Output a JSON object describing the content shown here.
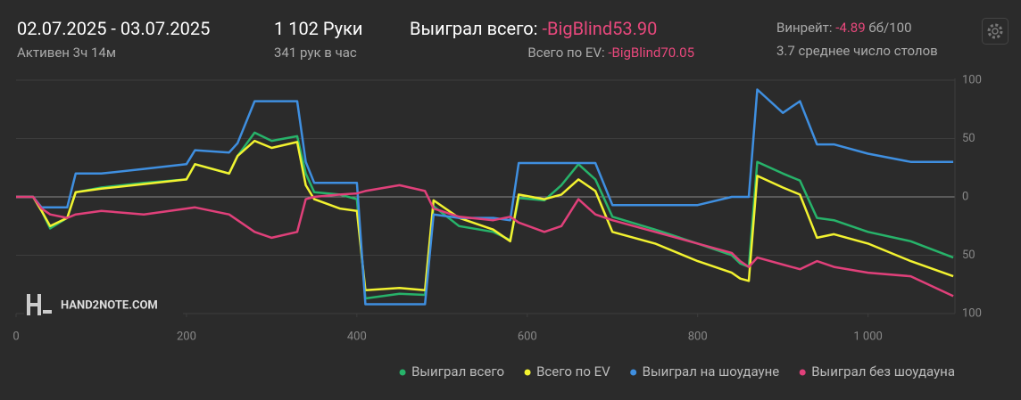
{
  "header": {
    "date_range": "02.07.2025 - 03.07.2025",
    "active": "Активен 3ч 14м",
    "hands": "1 102 Руки",
    "hands_per_hour": "341 рук в час",
    "won_label": "Выиграл всего:",
    "won_value": "-BigBlind53.90",
    "ev_label": "Всего по EV:",
    "ev_value": "-BigBlind70.05",
    "winrate_label": "Винрейт:",
    "winrate_value": "-4.89",
    "winrate_unit": "бб/100",
    "tables": "3.7 среднее число столов",
    "watermark": "HAND2NOTE.COM"
  },
  "chart_data": {
    "type": "line",
    "grid": true,
    "legend": "bottom-right",
    "x": [
      0,
      20,
      30,
      40,
      60,
      70,
      100,
      150,
      200,
      210,
      250,
      260,
      280,
      300,
      330,
      340,
      350,
      380,
      400,
      410,
      450,
      480,
      490,
      520,
      560,
      580,
      590,
      620,
      640,
      660,
      680,
      700,
      750,
      800,
      840,
      850,
      860,
      870,
      900,
      920,
      940,
      960,
      1000,
      1050,
      1100
    ],
    "xlim": [
      0,
      1102
    ],
    "xticks": [
      0,
      200,
      400,
      600,
      800,
      {
        "value": 1000,
        "label": "1 000"
      }
    ],
    "ylim": [
      -100,
      100
    ],
    "yticks": [
      {
        "value": -100,
        "label": "100"
      },
      {
        "value": -50,
        "label": "50"
      },
      0,
      50,
      100
    ],
    "series": [
      {
        "name": "Выиграл всего",
        "color": "#27b36a",
        "values": [
          0,
          0,
          -12,
          -27,
          -18,
          4,
          8,
          12,
          15,
          28,
          20,
          35,
          55,
          48,
          52,
          20,
          4,
          2,
          -2,
          -87,
          -83,
          -84,
          -8,
          -25,
          -30,
          -37,
          -1,
          -3,
          10,
          28,
          15,
          -17,
          -28,
          -40,
          -50,
          -57,
          -60,
          30,
          20,
          14,
          -18,
          -20,
          -30,
          -38,
          -52
        ]
      },
      {
        "name": "Всего по EV",
        "color": "#f2f230",
        "values": [
          0,
          0,
          -12,
          -25,
          -18,
          4,
          7,
          11,
          15,
          28,
          20,
          35,
          48,
          42,
          47,
          10,
          -2,
          -10,
          -12,
          -80,
          -78,
          -80,
          -3,
          -18,
          -28,
          -38,
          2,
          -2,
          2,
          15,
          5,
          -30,
          -40,
          -55,
          -65,
          -70,
          -72,
          18,
          8,
          2,
          -35,
          -32,
          -40,
          -55,
          -68
        ]
      },
      {
        "name": "Выиграл на шоудауне",
        "color": "#3f8fe0",
        "values": [
          0,
          0,
          -9,
          -9,
          -9,
          20,
          20,
          24,
          28,
          40,
          38,
          46,
          82,
          82,
          82,
          30,
          12,
          12,
          12,
          -92,
          -92,
          -92,
          -15,
          -18,
          -18,
          -20,
          29,
          29,
          29,
          29,
          29,
          -7,
          -7,
          -7,
          0,
          0,
          0,
          92,
          72,
          82,
          45,
          45,
          37,
          30,
          30
        ]
      },
      {
        "name": "Выиграл без шоудауна",
        "color": "#e0407a",
        "values": [
          0,
          0,
          -10,
          -15,
          -18,
          -15,
          -12,
          -15,
          -10,
          -9,
          -15,
          -20,
          -30,
          -35,
          -30,
          -2,
          0,
          2,
          3,
          5,
          10,
          5,
          -10,
          -17,
          -20,
          -17,
          -22,
          -30,
          -25,
          -2,
          -15,
          -20,
          -30,
          -40,
          -48,
          -55,
          -60,
          -52,
          -58,
          -62,
          -55,
          -60,
          -65,
          -68,
          -85
        ]
      }
    ]
  }
}
